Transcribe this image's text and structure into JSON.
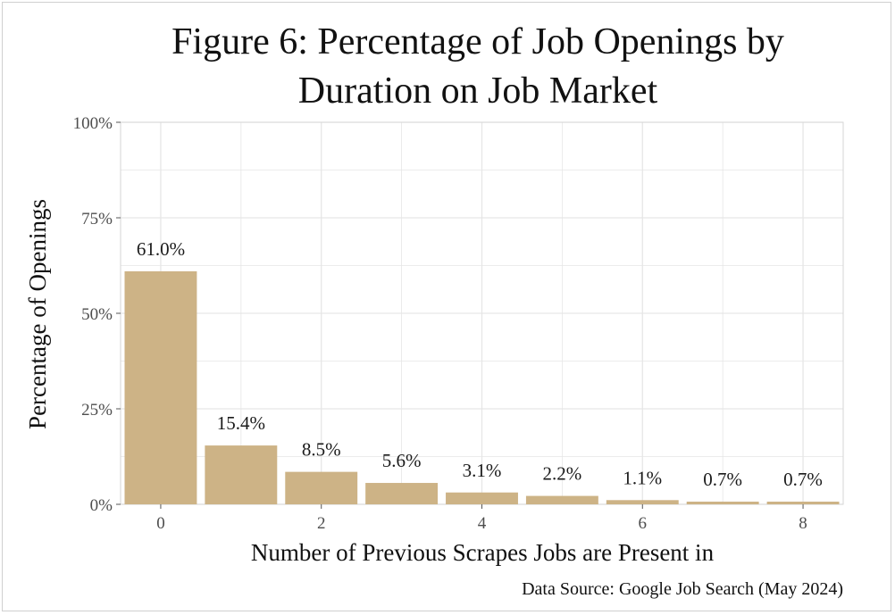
{
  "chart_data": {
    "type": "bar",
    "title": "Figure 6: Percentage of Job Openings by",
    "title_line2": "Duration on Job Market",
    "xlabel": "Number of Previous Scrapes Jobs are Present in",
    "ylabel": "Percentage of Openings",
    "caption": "Data Source: Google Job Search (May 2024)",
    "x": [
      0,
      1,
      2,
      3,
      4,
      5,
      6,
      7,
      8
    ],
    "values": [
      61.0,
      15.4,
      8.5,
      5.6,
      3.1,
      2.2,
      1.1,
      0.7,
      0.7
    ],
    "data_labels": [
      "61.0%",
      "15.4%",
      "8.5%",
      "5.6%",
      "3.1%",
      "2.2%",
      "1.1%",
      "0.7%",
      "0.7%"
    ],
    "ylim": [
      0,
      100
    ],
    "xlim": [
      -0.5,
      8.5
    ],
    "y_ticks": [
      0,
      25,
      50,
      75,
      100
    ],
    "y_tick_labels": [
      "0%",
      "25%",
      "50%",
      "75%",
      "100%"
    ],
    "x_ticks": [
      0,
      2,
      4,
      6,
      8
    ],
    "x_tick_labels": [
      "0",
      "2",
      "4",
      "6",
      "8"
    ],
    "grid": true,
    "legend": "none",
    "colors": {
      "bar": "#cdb386",
      "grid": "#e6e6e6",
      "panel_border": "#d6d6d6"
    }
  }
}
